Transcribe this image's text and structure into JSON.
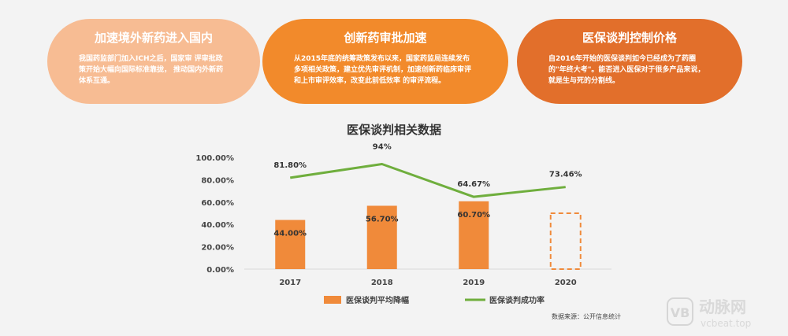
{
  "colors": {
    "card1": "#f7bc93",
    "card2": "#f28a2b",
    "card3": "#e26f2b",
    "bar": "#f08a3a",
    "line": "#6fae3d"
  },
  "cards": [
    {
      "title": "加速境外新药进入国内",
      "text": "我国药监部门加入ICH之后，国家审 评审批政策开始大幅向国际标准靠拢， 推动国内外新药体系互通。"
    },
    {
      "title": "创新药审批加速",
      "text": "从2015年底的统筹政策发布以来，国家药监局连续发布多项相关政策，建立优先审评机制，加速创新药临床审评和上市审评效率，改变此前低效率 的审评流程。"
    },
    {
      "title": "医保谈判控制价格",
      "text": "自2016年开始的医保谈判如今已经成为了药圈的\"年终大考\"。能否进入医保对于很多产品来说，就是生与死的分割线。"
    }
  ],
  "chart_data": {
    "type": "bar",
    "title": "医保谈判相关数据",
    "categories": [
      "2017",
      "2018",
      "2019",
      "2020"
    ],
    "series": [
      {
        "name": "医保谈判平均降幅",
        "type": "bar",
        "values": [
          44.0,
          56.7,
          60.7,
          null
        ],
        "labels": [
          "44.00%",
          "56.70%",
          "60.70%",
          ""
        ],
        "placeholder_value": 50
      },
      {
        "name": "医保谈判成功率",
        "type": "line",
        "values": [
          81.8,
          94,
          64.67,
          73.46
        ],
        "labels": [
          "81.80%",
          "94%",
          "64.67%",
          "73.46%"
        ]
      }
    ],
    "ylim": [
      0,
      100
    ],
    "yticks": [
      "0.00%",
      "20.00%",
      "40.00%",
      "60.00%",
      "80.00%",
      "100.00%"
    ],
    "legend_position": "bottom"
  },
  "source": "数据来源：公开信息统计",
  "watermark": {
    "cn": "动脉网",
    "en": "vcbeat.top",
    "mark": "VB"
  }
}
